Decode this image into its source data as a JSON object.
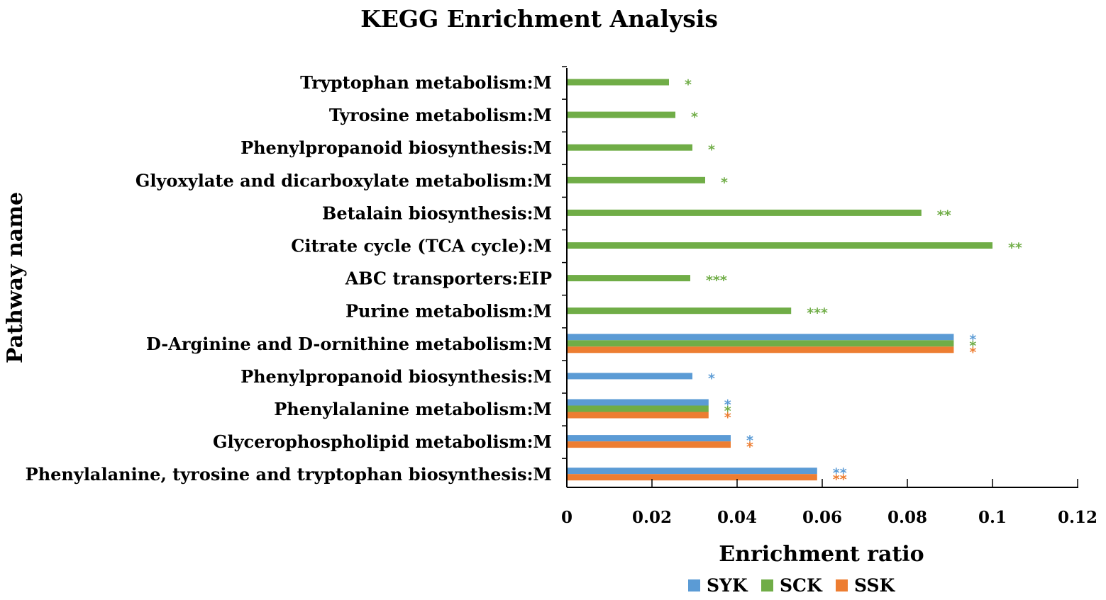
{
  "chart_data": {
    "type": "bar",
    "orientation": "horizontal",
    "title": "KEGG Enrichment Analysis",
    "xlabel": "Enrichment ratio",
    "ylabel": "Pathway name",
    "xlim": [
      0,
      0.12
    ],
    "xticks": [
      "0",
      "0.02",
      "0.04",
      "0.06",
      "0.08",
      "0.1",
      "0.12"
    ],
    "legend_position": "bottom",
    "grid": false,
    "colors": {
      "SYK": "#5B9BD5",
      "SCK": "#70AD47",
      "SSK": "#ED7D31"
    },
    "series": [
      {
        "name": "SYK",
        "color": "#5B9BD5"
      },
      {
        "name": "SCK",
        "color": "#70AD47"
      },
      {
        "name": "SSK",
        "color": "#ED7D31"
      }
    ],
    "categories": [
      {
        "label": "Tryptophan metabolism:M",
        "bars": [
          {
            "series": "SCK",
            "value": 0.024,
            "sig": "*"
          }
        ]
      },
      {
        "label": "Tyrosine metabolism:M",
        "bars": [
          {
            "series": "SCK",
            "value": 0.0255,
            "sig": "*"
          }
        ]
      },
      {
        "label": "Phenylpropanoid biosynthesis:M",
        "bars": [
          {
            "series": "SCK",
            "value": 0.0295,
            "sig": "*"
          }
        ]
      },
      {
        "label": "Glyoxylate and dicarboxylate metabolism:M",
        "bars": [
          {
            "series": "SCK",
            "value": 0.0325,
            "sig": "*"
          }
        ]
      },
      {
        "label": "Betalain biosynthesis:M",
        "bars": [
          {
            "series": "SCK",
            "value": 0.0833,
            "sig": "**"
          }
        ]
      },
      {
        "label": "Citrate cycle (TCA cycle):M",
        "bars": [
          {
            "series": "SCK",
            "value": 0.1,
            "sig": "**"
          }
        ]
      },
      {
        "label": "ABC transporters:EIP",
        "bars": [
          {
            "series": "SCK",
            "value": 0.029,
            "sig": "***"
          }
        ]
      },
      {
        "label": "Purine metabolism:M",
        "bars": [
          {
            "series": "SCK",
            "value": 0.0527,
            "sig": "***"
          }
        ]
      },
      {
        "label": "D-Arginine and D-ornithine metabolism:M",
        "bars": [
          {
            "series": "SYK",
            "value": 0.0909,
            "sig": "*"
          },
          {
            "series": "SCK",
            "value": 0.0909,
            "sig": "*"
          },
          {
            "series": "SSK",
            "value": 0.0909,
            "sig": "*"
          }
        ]
      },
      {
        "label": "Phenylpropanoid biosynthesis:M",
        "bars": [
          {
            "series": "SYK",
            "value": 0.0295,
            "sig": "*"
          }
        ]
      },
      {
        "label": "Phenylalanine metabolism:M",
        "bars": [
          {
            "series": "SYK",
            "value": 0.0333,
            "sig": "*"
          },
          {
            "series": "SCK",
            "value": 0.0333,
            "sig": "*"
          },
          {
            "series": "SSK",
            "value": 0.0333,
            "sig": "*"
          }
        ]
      },
      {
        "label": "Glycerophospholipid metabolism:M",
        "bars": [
          {
            "series": "SYK",
            "value": 0.0385,
            "sig": "*"
          },
          {
            "series": "SSK",
            "value": 0.0385,
            "sig": "*"
          }
        ]
      },
      {
        "label": "Phenylalanine, tyrosine and tryptophan biosynthesis:M",
        "bars": [
          {
            "series": "SYK",
            "value": 0.0588,
            "sig": "**"
          },
          {
            "series": "SSK",
            "value": 0.0588,
            "sig": "**"
          }
        ]
      }
    ]
  }
}
